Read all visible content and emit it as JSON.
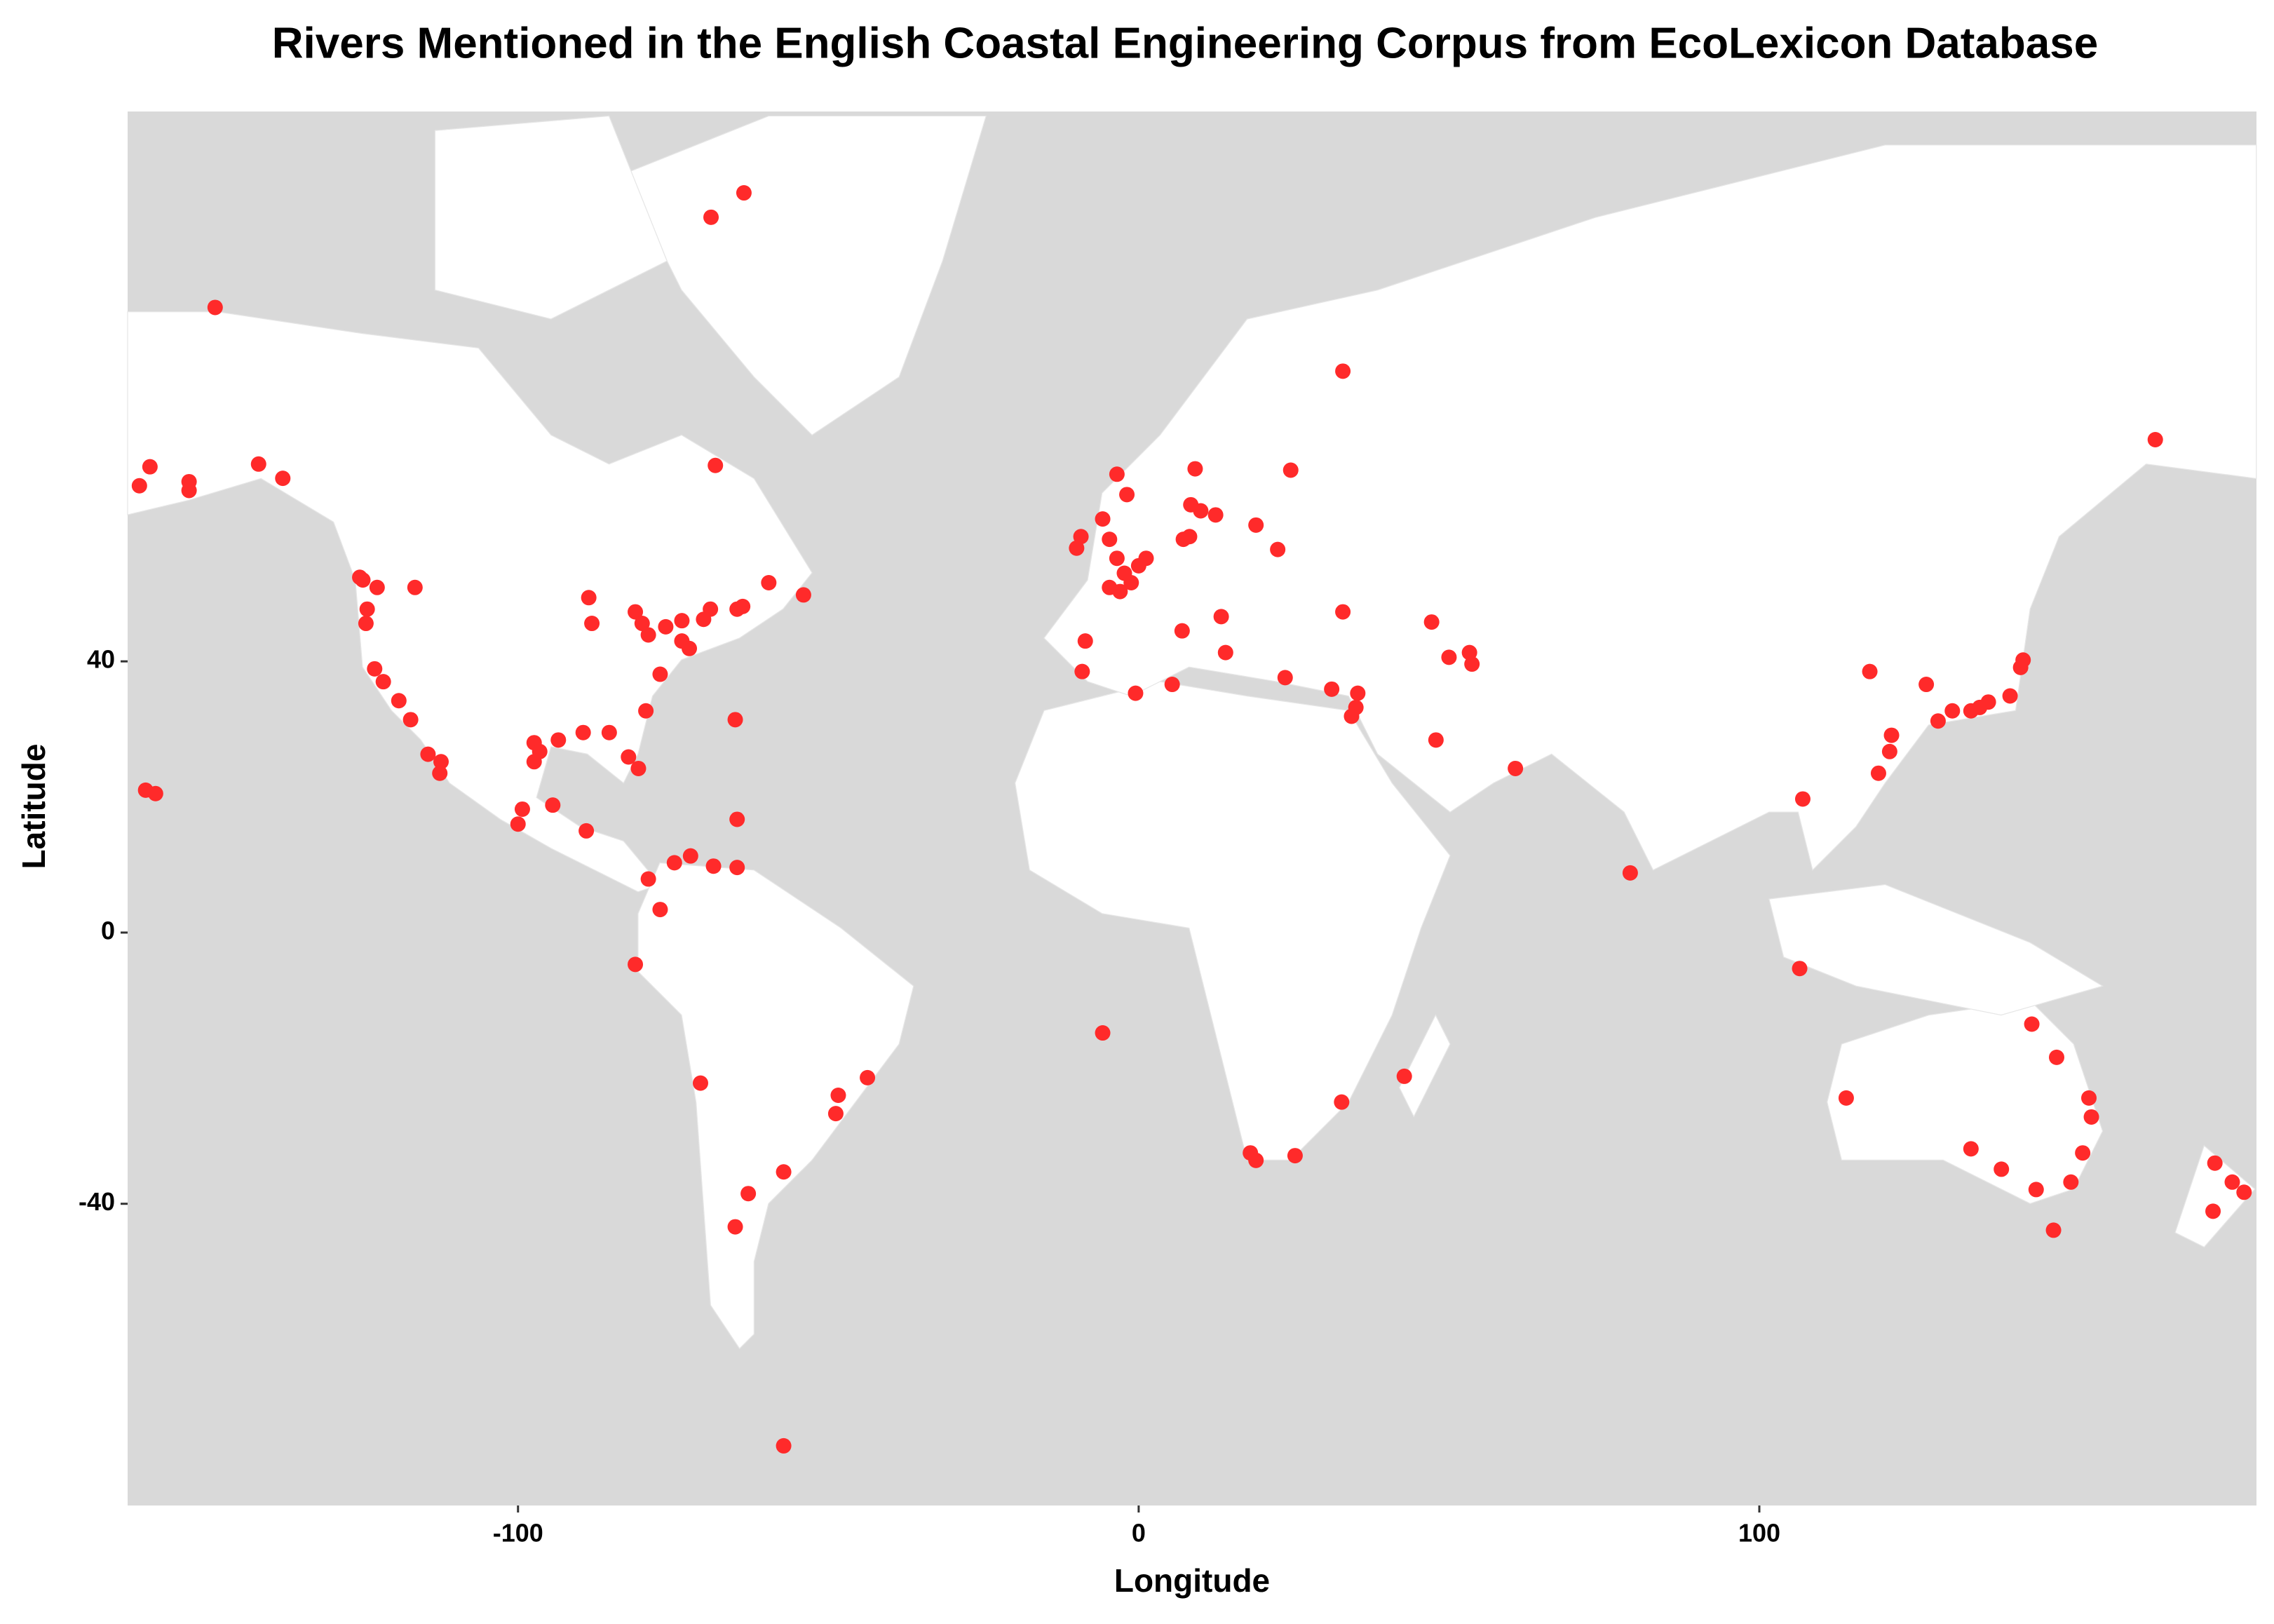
{
  "chart_data": {
    "type": "scatter",
    "title": "Rivers Mentioned in the English Coastal Engineering Corpus from EcoLexicon Database",
    "x_label": "Longitude",
    "y_label": "Latitude",
    "color": "#ff2a2a",
    "xlim": [
      -162.9,
      180.1
    ],
    "ylim": [
      -84.5,
      121.1
    ],
    "xticks": [
      -100,
      0,
      100
    ],
    "yticks": [
      -40,
      0,
      40
    ],
    "x": [
      -63.6,
      -68.9,
      -148.8,
      -161.0,
      -159.3,
      -153.0,
      -153.0,
      -141.8,
      -137.9,
      -68.2,
      32.9,
      163.8,
      24.5,
      -3.5,
      -1.9,
      9.1,
      8.4,
      10.0,
      12.4,
      18.9,
      22.4,
      -5.8,
      -9.3,
      -10.0,
      -4.7,
      -3.5,
      -2.3,
      0,
      1.2,
      -1.2,
      -3.0,
      -4.7,
      7.2,
      8.2,
      -8.6,
      -9.1,
      -0.5,
      5.4,
      7.0,
      13.3,
      14.0,
      23.6,
      31.1,
      32.9,
      35.3,
      35.0,
      34.3,
      47.2,
      50.0,
      53.3,
      53.7,
      47.9,
      60.7,
      79.2,
      107.0,
      106.5,
      117.8,
      121.3,
      121.0,
      119.2,
      126.9,
      128.8,
      131.1,
      134.1,
      136.9,
      140.4,
      142.1,
      142.5,
      135.5,
      114.0,
      134.1,
      139.0,
      143.9,
      147.9,
      153.1,
      153.5,
      152.1,
      150.2,
      144.6,
      147.4,
      173.4,
      176.2,
      178.1,
      173.1,
      -5.8,
      18.0,
      18.9,
      25.2,
      32.7,
      42.8,
      -43.7,
      -48.4,
      -48.8,
      -57.2,
      -62.9,
      -65.0,
      -70.6,
      -81.1,
      -77.1,
      -74.8,
      -72.2,
      -68.5,
      -64.7,
      -57.2,
      -79.0,
      -94.4,
      -89.0,
      -100.0,
      -99.3,
      -160.0,
      -158.4,
      -112.6,
      -112.4,
      -114.5,
      -117.3,
      -119.2,
      -121.7,
      -123.1,
      -124.5,
      -125.0,
      -124.3,
      -116.6,
      -97.4,
      -93.5,
      -89.5,
      -85.3,
      -82.2,
      -80.6,
      -79.4,
      -77.1,
      -73.6,
      -70.1,
      -64.7,
      -59.6,
      -54.0,
      -65.0,
      -64.7,
      -88.6,
      -88.1,
      -81.1,
      -79.0,
      -80.0,
      -76.2,
      -97.4,
      -96.5,
      -125.5,
      -122.7,
      -73.6,
      -69.0,
      -63.8,
      -72.4
    ],
    "values": [
      109.1,
      105.5,
      92.2,
      65.9,
      68.7,
      66.5,
      65.2,
      69.1,
      67.0,
      68.9,
      82.8,
      72.7,
      68.2,
      67.6,
      64.6,
      68.4,
      63.1,
      62.2,
      61.6,
      60.1,
      56.5,
      61.0,
      58.4,
      56.7,
      58.0,
      55.2,
      53.0,
      54.1,
      55.2,
      51.6,
      50.3,
      50.9,
      58.0,
      58.4,
      43.0,
      38.5,
      35.3,
      36.6,
      44.5,
      46.6,
      41.3,
      37.6,
      35.9,
      47.3,
      35.3,
      33.2,
      31.9,
      45.8,
      40.6,
      41.3,
      39.6,
      28.4,
      24.2,
      8.8,
      19.7,
      -5.3,
      38.5,
      29.1,
      26.7,
      23.5,
      36.6,
      31.2,
      32.7,
      32.7,
      34.0,
      34.9,
      39.1,
      40.2,
      33.2,
      -24.4,
      -31.9,
      -34.9,
      -13.5,
      -18.4,
      -24.4,
      -27.2,
      -32.5,
      -36.8,
      -37.9,
      -43.9,
      -34.0,
      -36.8,
      -38.3,
      -41.1,
      -14.8,
      -32.5,
      -33.6,
      -32.9,
      -25.0,
      -21.2,
      -21.4,
      -24.0,
      -26.7,
      -35.3,
      -38.5,
      -43.4,
      -22.2,
      -4.7,
      3.4,
      10.3,
      11.3,
      9.8,
      9.6,
      -75.7,
      7.9,
      18.8,
      15.0,
      16.0,
      18.2,
      21.0,
      20.5,
      23.5,
      25.2,
      26.3,
      31.4,
      34.2,
      37.0,
      38.9,
      45.6,
      52.0,
      47.7,
      50.9,
      28.0,
      28.4,
      29.5,
      29.5,
      25.9,
      24.2,
      32.7,
      38.1,
      43.0,
      46.2,
      47.7,
      51.6,
      49.8,
      31.4,
      16.7,
      49.4,
      45.6,
      47.3,
      43.9,
      45.6,
      45.1,
      25.2,
      26.7,
      52.4,
      50.9,
      46.0,
      47.7,
      48.1,
      41.9
    ]
  }
}
